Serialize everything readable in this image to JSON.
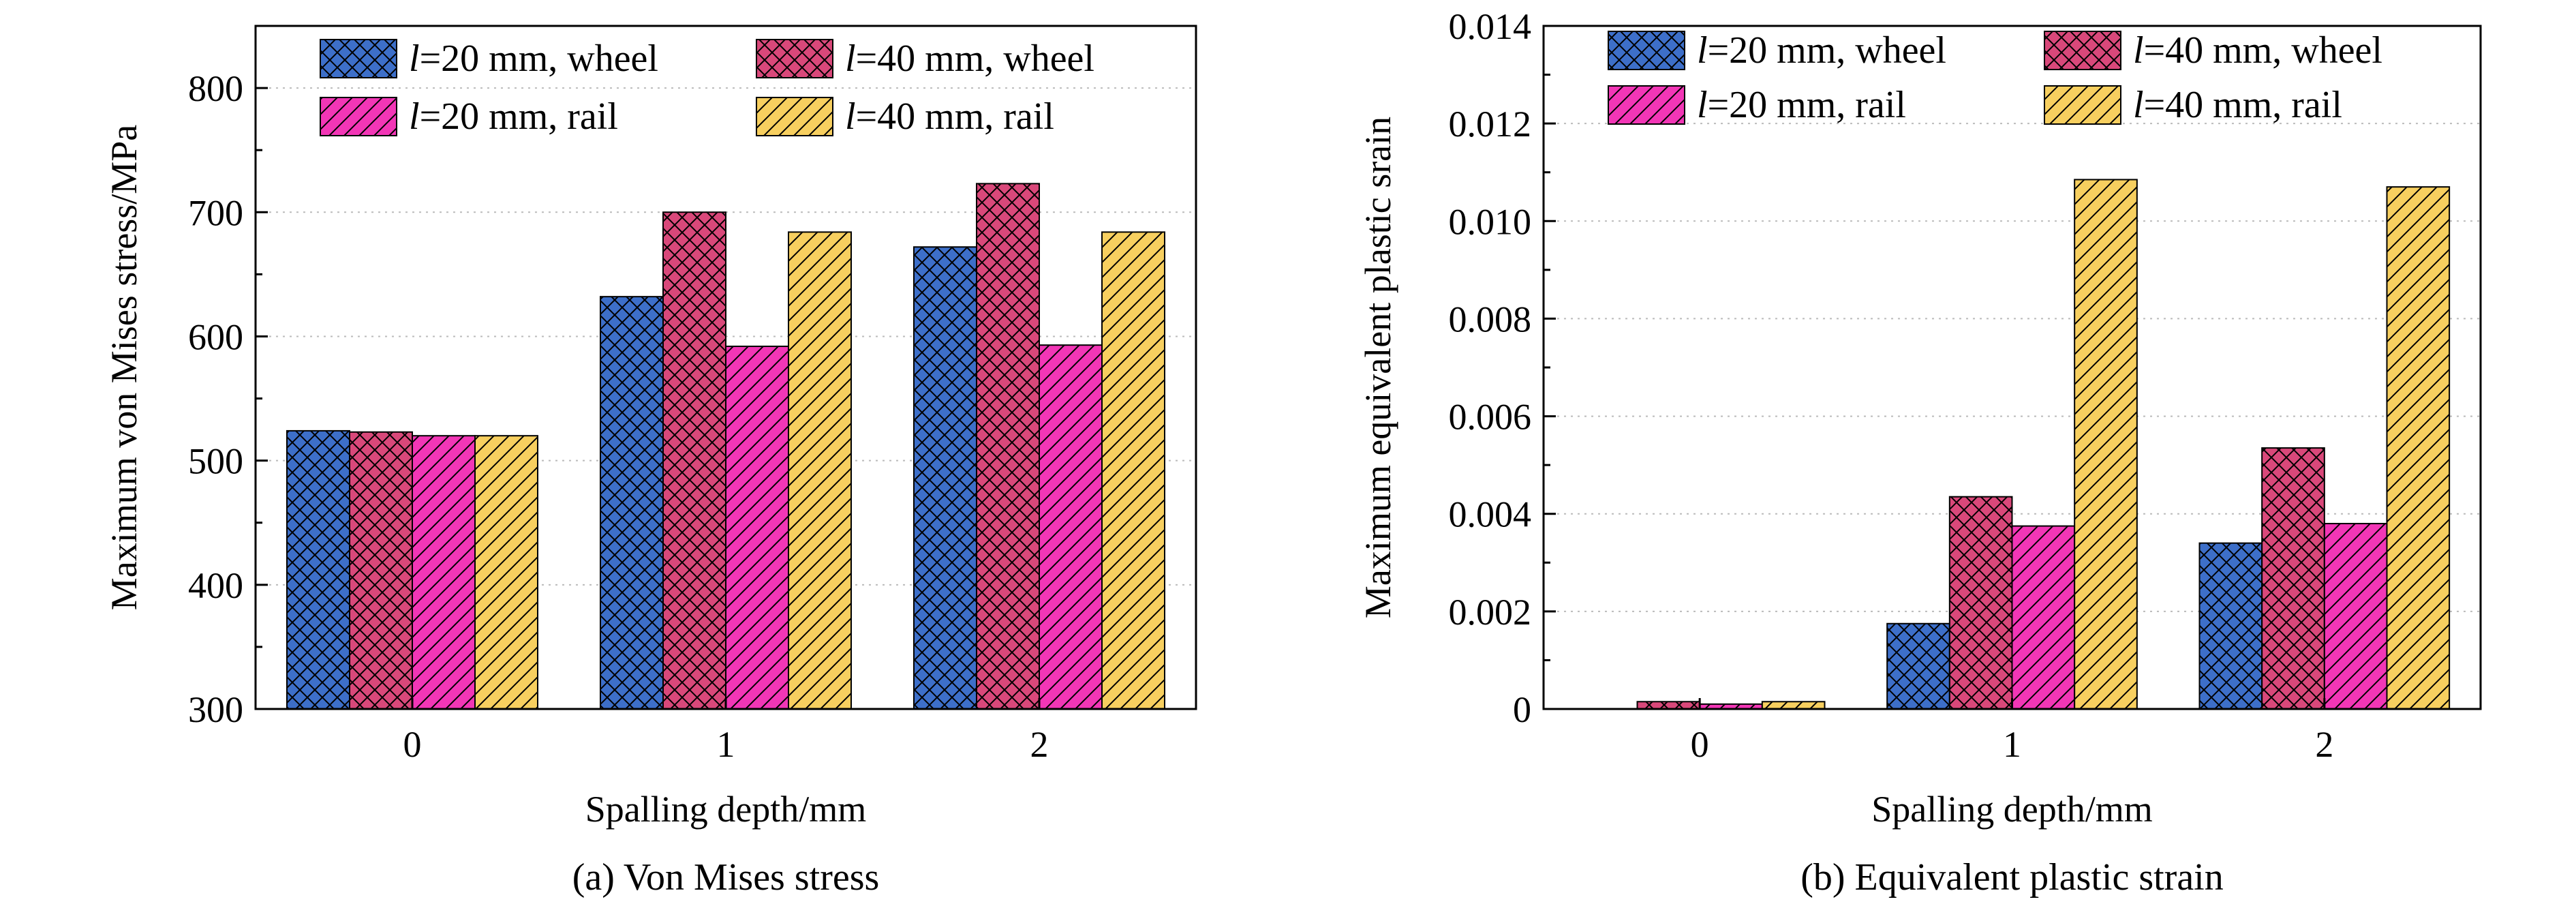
{
  "colors": {
    "l20_wheel": "#3d6fc9",
    "l40_wheel": "#d9487a",
    "l20_rail": "#f236b6",
    "l40_rail": "#f7cf5f",
    "axis": "#000000",
    "grid": "#bbbbbb"
  },
  "hatches": {
    "l20_wheel": "crosshatch",
    "l40_wheel": "crosshatch",
    "l20_rail": "diagonal",
    "l40_rail": "diagonal"
  },
  "chart_data": [
    {
      "type": "bar",
      "title": "",
      "caption": "(a) Von Mises stress",
      "xlabel": "Spalling depth/mm",
      "ylabel": "Maximum von Mises stress/MPa",
      "categories": [
        "0",
        "1",
        "2"
      ],
      "ylim": [
        300,
        850
      ],
      "yticks": [
        300,
        400,
        500,
        600,
        700,
        800
      ],
      "ytick_labels": [
        "300",
        "400",
        "500",
        "600",
        "700",
        "800"
      ],
      "grid": true,
      "legend_position": "top",
      "series": [
        {
          "key": "l20_wheel",
          "italic": "l",
          "name": "=20 mm, wheel",
          "values": [
            524,
            632,
            672
          ]
        },
        {
          "key": "l40_wheel",
          "italic": "l",
          "name": "=40 mm, wheel",
          "values": [
            523,
            700,
            723
          ]
        },
        {
          "key": "l20_rail",
          "italic": "l",
          "name": "=20 mm, rail",
          "values": [
            520,
            592,
            593
          ]
        },
        {
          "key": "l40_rail",
          "italic": "l",
          "name": "=40 mm, rail",
          "values": [
            520,
            684,
            684
          ]
        }
      ]
    },
    {
      "type": "bar",
      "title": "",
      "caption": "(b) Equivalent plastic strain",
      "xlabel": "Spalling depth/mm",
      "ylabel": "Maximum equivalent plastic srain",
      "categories": [
        "0",
        "1",
        "2"
      ],
      "ylim": [
        0,
        0.014
      ],
      "yticks": [
        0,
        0.002,
        0.004,
        0.006,
        0.008,
        0.01,
        0.012,
        0.014
      ],
      "ytick_labels": [
        "0",
        "0.002",
        "0.004",
        "0.006",
        "0.008",
        "0.010",
        "0.012",
        "0.014"
      ],
      "grid": true,
      "legend_position": "top",
      "series": [
        {
          "key": "l20_wheel",
          "italic": "l",
          "name": "=20 mm, wheel",
          "values": [
            0,
            0.00175,
            0.0034
          ]
        },
        {
          "key": "l40_wheel",
          "italic": "l",
          "name": "=40 mm, wheel",
          "values": [
            0.00015,
            0.00435,
            0.00535
          ]
        },
        {
          "key": "l20_rail",
          "italic": "l",
          "name": "=20 mm, rail",
          "values": [
            0.0001,
            0.00375,
            0.0038
          ]
        },
        {
          "key": "l40_rail",
          "italic": "l",
          "name": "=40 mm, rail",
          "values": [
            0.00015,
            0.01085,
            0.0107
          ]
        }
      ]
    }
  ]
}
